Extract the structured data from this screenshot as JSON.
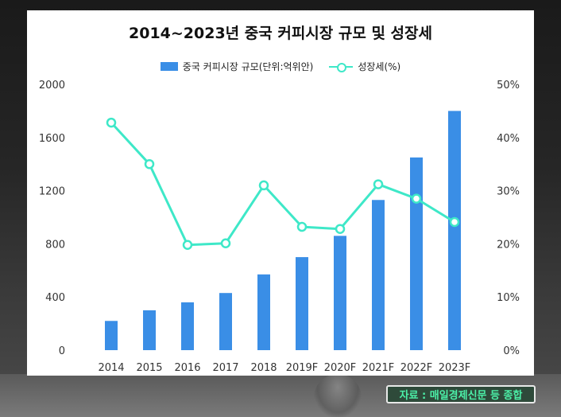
{
  "chart_data": {
    "type": "bar",
    "title": "2014~2023년 중국 커피시장 규모 및 성장세",
    "categories": [
      "2014",
      "2015",
      "2016",
      "2017",
      "2018",
      "2019F",
      "2020F",
      "2021F",
      "2022F",
      "2023F"
    ],
    "series": [
      {
        "name": "중국 커피시장 규모(단위:억위안)",
        "type": "bar",
        "axis": "left",
        "color": "#3a8ee6",
        "values": [
          220,
          300,
          360,
          430,
          570,
          700,
          860,
          1130,
          1450,
          1800
        ]
      },
      {
        "name": "성장세(%)",
        "type": "line",
        "axis": "right",
        "color": "#3ee8c8",
        "values": [
          42.8,
          35,
          19.8,
          20.1,
          31,
          23.2,
          22.8,
          31.2,
          28.5,
          24.1
        ]
      }
    ],
    "ylim_left": [
      0,
      2000
    ],
    "ylim_right": [
      0,
      50
    ],
    "yticks_left": [
      "0",
      "400",
      "800",
      "1200",
      "1600",
      "2000"
    ],
    "yticks_right": [
      "0%",
      "10%",
      "20%",
      "30%",
      "40%",
      "50%"
    ],
    "grid": false,
    "legend_position": "top-center"
  },
  "source_label": "자료 : 매일경제신문 등 종합"
}
